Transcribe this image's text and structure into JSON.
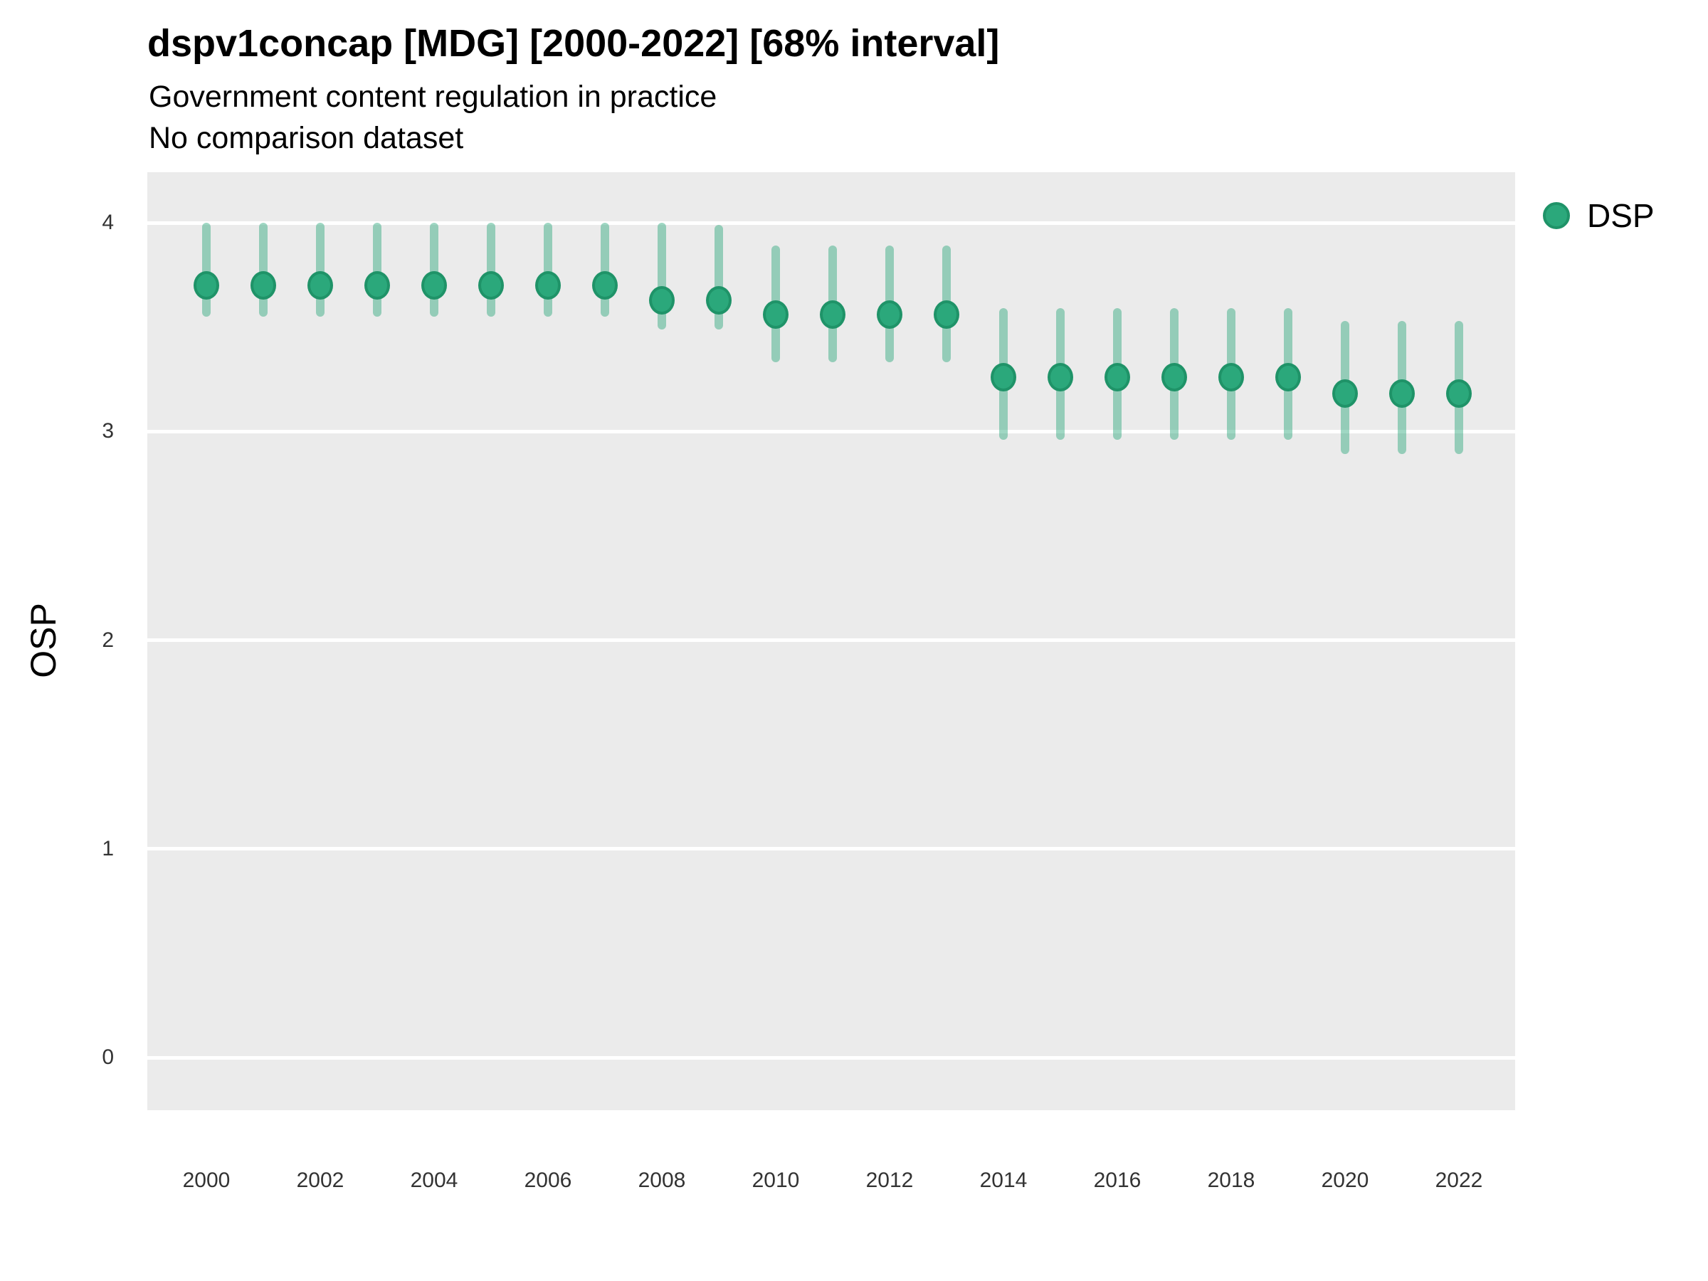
{
  "header": {
    "title": "dspv1concap [MDG] [2000-2022] [68% interval]",
    "subtitle": "Government content regulation in practice",
    "comparison_note": "No comparison dataset"
  },
  "y_axis_title": "OSP",
  "legend": {
    "position": "top-right",
    "items": [
      {
        "label": "DSP",
        "color": "#2ba87b"
      }
    ]
  },
  "colors": {
    "point_fill": "#2ba87b",
    "point_stroke": "#1f9368",
    "interval_bar": "rgba(42,167,122,0.45)",
    "panel_bg": "#ebebeb",
    "grid_line": "#ffffff",
    "tick_text": "#333333"
  },
  "chart_data": {
    "type": "scatter",
    "title": "dspv1concap [MDG] [2000-2022] [68% interval]",
    "subtitle": "Government content regulation in practice",
    "note": "No comparison dataset",
    "interval": "68%",
    "country": "MDG",
    "xlabel": "",
    "ylabel": "OSP",
    "grid": "horizontal white lines on gray panel, no vertical gridlines",
    "legend_position": "top-right",
    "x_tick_labels": [
      2000,
      2002,
      2004,
      2006,
      2008,
      2010,
      2012,
      2014,
      2016,
      2018,
      2020,
      2022
    ],
    "y_tick_labels": [
      0,
      1,
      2,
      3,
      4
    ],
    "xlim": [
      1999.0,
      2023.0
    ],
    "ylim": [
      -0.26,
      4.24
    ],
    "series": [
      {
        "name": "DSP",
        "years": [
          2000,
          2001,
          2002,
          2003,
          2004,
          2005,
          2006,
          2007,
          2008,
          2009,
          2010,
          2011,
          2012,
          2013,
          2014,
          2015,
          2016,
          2017,
          2018,
          2019,
          2020,
          2021,
          2022
        ],
        "est": [
          3.7,
          3.7,
          3.7,
          3.7,
          3.7,
          3.7,
          3.7,
          3.7,
          3.63,
          3.63,
          3.56,
          3.56,
          3.56,
          3.56,
          3.26,
          3.26,
          3.26,
          3.26,
          3.26,
          3.26,
          3.18,
          3.18,
          3.18
        ],
        "lo": [
          3.55,
          3.55,
          3.55,
          3.55,
          3.55,
          3.55,
          3.55,
          3.55,
          3.49,
          3.49,
          3.33,
          3.33,
          3.33,
          3.33,
          2.96,
          2.96,
          2.96,
          2.96,
          2.96,
          2.96,
          2.89,
          2.89,
          2.89
        ],
        "hi": [
          4.0,
          4.0,
          4.0,
          4.0,
          4.0,
          4.0,
          4.0,
          4.0,
          4.0,
          3.99,
          3.89,
          3.89,
          3.89,
          3.89,
          3.59,
          3.59,
          3.59,
          3.59,
          3.59,
          3.59,
          3.53,
          3.53,
          3.53
        ]
      }
    ]
  }
}
